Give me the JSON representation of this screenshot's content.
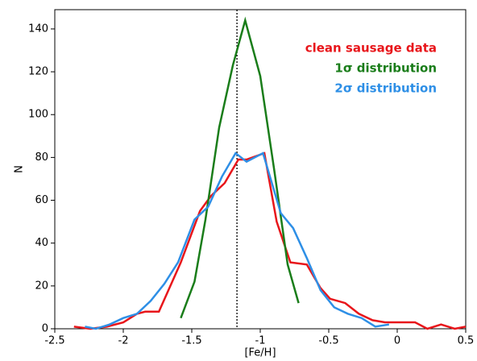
{
  "chart_data": {
    "type": "line",
    "xlabel": "[Fe/H]",
    "ylabel": "N",
    "xlim": [
      -2.5,
      0.5
    ],
    "xticks": [
      -2.5,
      -2.0,
      -1.5,
      -1.0,
      -0.5,
      0.0,
      0.5
    ],
    "ylim": [
      0,
      149
    ],
    "yticks": [
      0,
      20,
      40,
      60,
      80,
      100,
      120,
      140
    ],
    "vline": -1.17,
    "series": [
      {
        "name": "clean sausage data",
        "color": "#e8161b",
        "x": [
          -2.36,
          -2.24,
          -2.12,
          -2.0,
          -1.9,
          -1.84,
          -1.74,
          -1.58,
          -1.44,
          -1.36,
          -1.26,
          -1.16,
          -1.1,
          -0.97,
          -0.88,
          -0.78,
          -0.66,
          -0.56,
          -0.49,
          -0.38,
          -0.28,
          -0.18,
          -0.09,
          0.03,
          0.13,
          0.22,
          0.32,
          0.42,
          0.5
        ],
        "values": [
          1,
          0,
          1,
          3,
          7,
          8,
          8,
          31,
          55,
          62,
          68,
          79,
          79,
          82,
          50,
          31,
          30,
          19,
          14,
          12,
          7,
          4,
          3,
          3,
          3,
          0,
          2,
          0,
          1
        ]
      },
      {
        "name": "1σ distribution",
        "color": "#1a7d1a",
        "x": [
          -1.58,
          -1.48,
          -1.4,
          -1.3,
          -1.2,
          -1.11,
          -1.0,
          -0.9,
          -0.8,
          -0.72
        ],
        "values": [
          5,
          22,
          51,
          94,
          123,
          144,
          118,
          75,
          30,
          12
        ]
      },
      {
        "name": "2σ distribution",
        "color": "#2e8fe6",
        "x": [
          -2.28,
          -2.2,
          -2.1,
          -2.0,
          -1.9,
          -1.8,
          -1.7,
          -1.6,
          -1.48,
          -1.38,
          -1.28,
          -1.18,
          -1.1,
          -0.98,
          -0.85,
          -0.76,
          -0.66,
          -0.56,
          -0.46,
          -0.36,
          -0.26,
          -0.16,
          -0.06
        ],
        "values": [
          1,
          0,
          2,
          5,
          7,
          13,
          21,
          31,
          51,
          57,
          71,
          82,
          78,
          82,
          54,
          47,
          33,
          18,
          10,
          7,
          5,
          1,
          2
        ]
      }
    ]
  }
}
